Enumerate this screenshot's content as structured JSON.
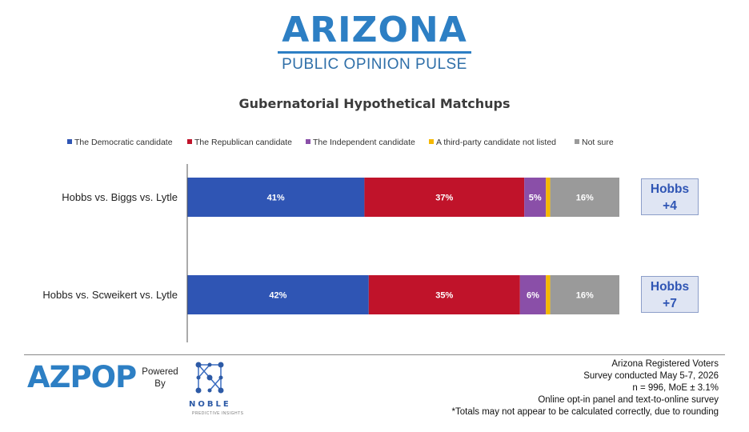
{
  "header": {
    "logo_title": "ARIZONA",
    "logo_subtitle": "PUBLIC OPINION PULSE"
  },
  "chart_data": {
    "type": "bar",
    "stacked": true,
    "orientation": "horizontal",
    "title": "Gubernatorial Hypothetical Matchups",
    "categories": [
      "Hobbs vs. Biggs vs. Lytle",
      "Hobbs vs. Scweikert vs. Lytle"
    ],
    "series": [
      {
        "name": "The Democratic candidate",
        "color": "#2f55b4",
        "values": [
          41,
          42
        ],
        "labels": [
          "41%",
          "42%"
        ]
      },
      {
        "name": "The Republican candidate",
        "color": "#c0132a",
        "values": [
          37,
          35
        ],
        "labels": [
          "37%",
          "35%"
        ]
      },
      {
        "name": "The Independent candidate",
        "color": "#8a4fa8",
        "values": [
          5,
          6
        ],
        "labels": [
          "5%",
          "6%"
        ]
      },
      {
        "name": "A third-party candidate not listed",
        "color": "#f5b800",
        "values": [
          1,
          1
        ],
        "labels": [
          "",
          ""
        ]
      },
      {
        "name": "Not sure",
        "color": "#9a9a9a",
        "values": [
          16,
          16
        ],
        "labels": [
          "16%",
          "16%"
        ]
      }
    ],
    "xlim": [
      0,
      100
    ],
    "legend_position": "top",
    "grid": false,
    "margins": [
      {
        "line1": "Hobbs",
        "line2": "+4"
      },
      {
        "line1": "Hobbs",
        "line2": "+7"
      }
    ]
  },
  "footer": {
    "brand": "AZPOP",
    "powered_line1": "Powered",
    "powered_line2": "By",
    "partner_name": "NOBLE",
    "partner_tagline": "PREDICTIVE INSIGHTS",
    "notes": [
      "Arizona Registered Voters",
      "Survey conducted May 5-7, 2026",
      "n = 996, MoE ± 3.1%",
      "Online opt-in panel and text-to-online survey",
      "*Totals may not appear to be calculated correctly, due to rounding"
    ]
  }
}
